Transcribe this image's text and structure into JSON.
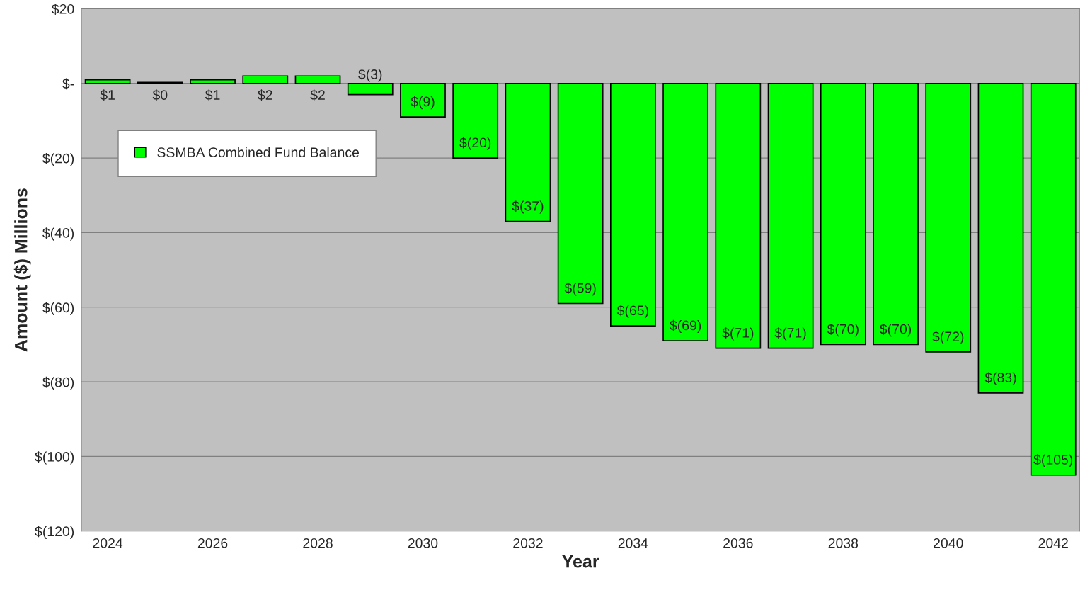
{
  "chart_data": {
    "type": "bar",
    "xlabel": "Year",
    "ylabel": "Amount ($) Millions",
    "categories": [
      "2024",
      null,
      "2026",
      null,
      "2028",
      null,
      "2030",
      null,
      "2032",
      null,
      "2034",
      null,
      "2036",
      null,
      "2038",
      null,
      "2040",
      null,
      "2042"
    ],
    "series": [
      {
        "name": "SSMBA Combined Fund Balance",
        "color": "#00ff00",
        "values": [
          1,
          0.3,
          1,
          2,
          2,
          -3,
          -9,
          -20,
          -37,
          -59,
          -65,
          -69,
          -71,
          -71,
          -70,
          -70,
          -72,
          -83,
          -105
        ],
        "value_labels": [
          "$1",
          "$0",
          "$1",
          "$2",
          "$2",
          "$(3)",
          "$(9)",
          "$(20)",
          "$(37)",
          "$(59)",
          "$(65)",
          "$(69)",
          "$(71)",
          "$(71)",
          "$(70)",
          "$(70)",
          "$(72)",
          "$(83)",
          "$(105)"
        ]
      }
    ],
    "ylim": [
      -120,
      20
    ],
    "yticks": [
      {
        "value": 20,
        "label": "$20"
      },
      {
        "value": 0,
        "label": "$-"
      },
      {
        "value": -20,
        "label": "$(20)"
      },
      {
        "value": -40,
        "label": "$(40)"
      },
      {
        "value": -60,
        "label": "$(60)"
      },
      {
        "value": -80,
        "label": "$(80)"
      },
      {
        "value": -100,
        "label": "$(100)"
      },
      {
        "value": -120,
        "label": "$(120)"
      }
    ],
    "grid": "y",
    "legend": "top left"
  }
}
